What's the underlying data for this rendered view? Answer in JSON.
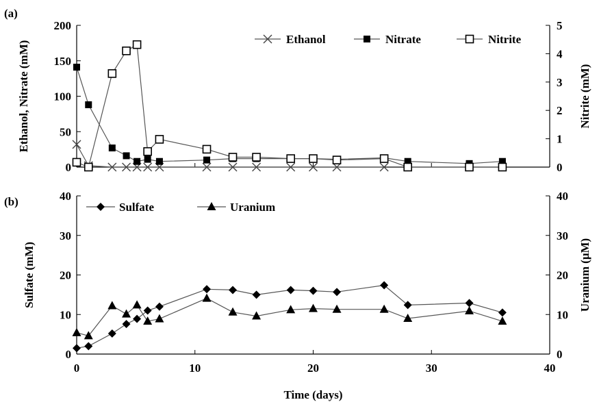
{
  "chart_data": [
    {
      "panel_label": "(a)",
      "type": "line",
      "xlabel": "",
      "xlim": [
        0,
        40
      ],
      "ylabel_left": "Ethanol, Nitrate (mM)",
      "ylim_left": [
        0,
        200
      ],
      "yticks_left": [
        0,
        50,
        100,
        150,
        200
      ],
      "ylabel_right": "Nitrite (mM)",
      "ylim_right": [
        0,
        5
      ],
      "yticks_right": [
        0,
        1,
        2,
        3,
        4,
        5
      ],
      "grid": false,
      "legend": "top-right",
      "series": [
        {
          "name": "Ethanol",
          "axis": "left",
          "marker": "x",
          "points": [
            [
              0,
              32
            ],
            [
              1,
              2
            ],
            [
              3,
              0
            ],
            [
              4.2,
              0
            ],
            [
              5.1,
              0
            ],
            [
              6,
              0
            ],
            [
              7,
              0
            ],
            [
              11,
              0
            ],
            [
              13.2,
              0
            ],
            [
              15.2,
              0
            ],
            [
              18.1,
              0
            ],
            [
              20,
              0
            ],
            [
              22,
              0
            ],
            [
              26,
              0
            ]
          ]
        },
        {
          "name": "Nitrate",
          "axis": "left",
          "marker": "filled-square",
          "points": [
            [
              0,
              141
            ],
            [
              1,
              88
            ],
            [
              3,
              27
            ],
            [
              4.2,
              16
            ],
            [
              5.1,
              8
            ],
            [
              6,
              11
            ],
            [
              7,
              8
            ],
            [
              11,
              10
            ],
            [
              13.2,
              12
            ],
            [
              15.2,
              12
            ],
            [
              18.1,
              12
            ],
            [
              20,
              12
            ],
            [
              22,
              11
            ],
            [
              26,
              13
            ],
            [
              28,
              8
            ],
            [
              33.2,
              5
            ],
            [
              36,
              8
            ]
          ]
        },
        {
          "name": "Nitrite",
          "axis": "right",
          "marker": "open-square",
          "points": [
            [
              0,
              0.17
            ],
            [
              1,
              0
            ],
            [
              3,
              3.3
            ],
            [
              4.2,
              4.1
            ],
            [
              5.1,
              4.32
            ],
            [
              6,
              0.55
            ],
            [
              7,
              0.98
            ],
            [
              11,
              0.63
            ],
            [
              13.2,
              0.35
            ],
            [
              15.2,
              0.35
            ],
            [
              18.1,
              0.3
            ],
            [
              20,
              0.3
            ],
            [
              22,
              0.25
            ],
            [
              26,
              0.3
            ],
            [
              28,
              0
            ],
            [
              33.2,
              0
            ],
            [
              36,
              0
            ]
          ]
        }
      ]
    },
    {
      "panel_label": "(b)",
      "type": "line",
      "xlabel": "Time (days)",
      "xlim": [
        0,
        40
      ],
      "xticks": [
        0,
        10,
        20,
        30,
        40
      ],
      "ylabel_left": "Sulfate (mM)",
      "ylim_left": [
        0,
        40
      ],
      "yticks_left": [
        0,
        10,
        20,
        30,
        40
      ],
      "ylabel_right": "Uranium (μM)",
      "ylim_right": [
        0,
        40
      ],
      "yticks_right": [
        0,
        10,
        20,
        30,
        40
      ],
      "grid": false,
      "legend": "top-left",
      "series": [
        {
          "name": "Sulfate",
          "axis": "left",
          "marker": "diamond",
          "points": [
            [
              0,
              1.5
            ],
            [
              1,
              2
            ],
            [
              3,
              5.2
            ],
            [
              4.2,
              7.6
            ],
            [
              5.1,
              8.9
            ],
            [
              6,
              11
            ],
            [
              7,
              12
            ],
            [
              11,
              16.4
            ],
            [
              13.2,
              16.2
            ],
            [
              15.2,
              15
            ],
            [
              18.1,
              16.2
            ],
            [
              20,
              16
            ],
            [
              22,
              15.7
            ],
            [
              26,
              17.4
            ],
            [
              28,
              12.4
            ],
            [
              33.2,
              12.9
            ],
            [
              36,
              10.5
            ]
          ]
        },
        {
          "name": "Uranium",
          "axis": "right",
          "marker": "triangle",
          "points": [
            [
              0,
              5.4
            ],
            [
              1,
              4.6
            ],
            [
              3,
              12.2
            ],
            [
              4.2,
              10.1
            ],
            [
              5.1,
              12.4
            ],
            [
              6,
              8.3
            ],
            [
              7,
              8.9
            ],
            [
              11,
              14.1
            ],
            [
              13.2,
              10.6
            ],
            [
              15.2,
              9.6
            ],
            [
              18.1,
              11.2
            ],
            [
              20,
              11.5
            ],
            [
              22,
              11.3
            ],
            [
              26,
              11.3
            ],
            [
              28,
              9
            ],
            [
              33.2,
              10.9
            ],
            [
              36,
              8.3
            ]
          ]
        }
      ]
    }
  ]
}
